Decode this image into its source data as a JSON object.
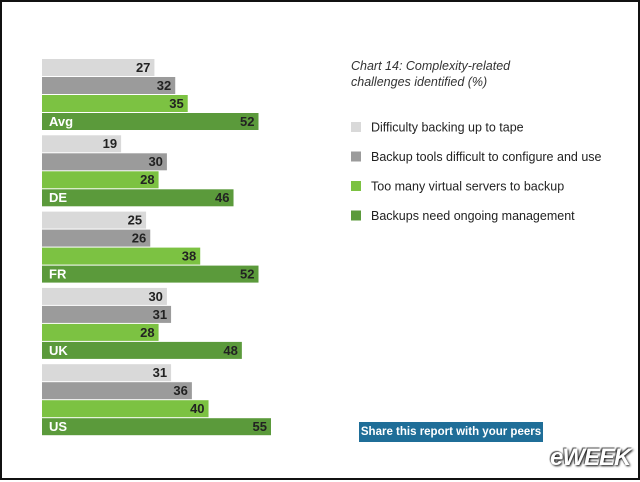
{
  "chart_data": {
    "type": "bar",
    "orientation": "horizontal",
    "title": "Chart 14: Complexity-related challenges identified (%)",
    "categories": [
      "Avg",
      "DE",
      "FR",
      "UK",
      "US"
    ],
    "series": [
      {
        "name": "Difficulty backing up to tape",
        "color": "#d9d9d9",
        "values": [
          27,
          19,
          25,
          30,
          31
        ]
      },
      {
        "name": "Backup tools difficult to configure and use",
        "color": "#9b9b9b",
        "values": [
          32,
          30,
          26,
          31,
          36
        ]
      },
      {
        "name": "Too many virtual servers to backup",
        "color": "#7cc242",
        "values": [
          35,
          28,
          38,
          28,
          40
        ]
      },
      {
        "name": "Backups need ongoing management",
        "color": "#5b9a3b",
        "values": [
          52,
          46,
          52,
          48,
          55
        ]
      }
    ]
  },
  "share_button": "Share this report with your peers",
  "brand": "eWEEK"
}
